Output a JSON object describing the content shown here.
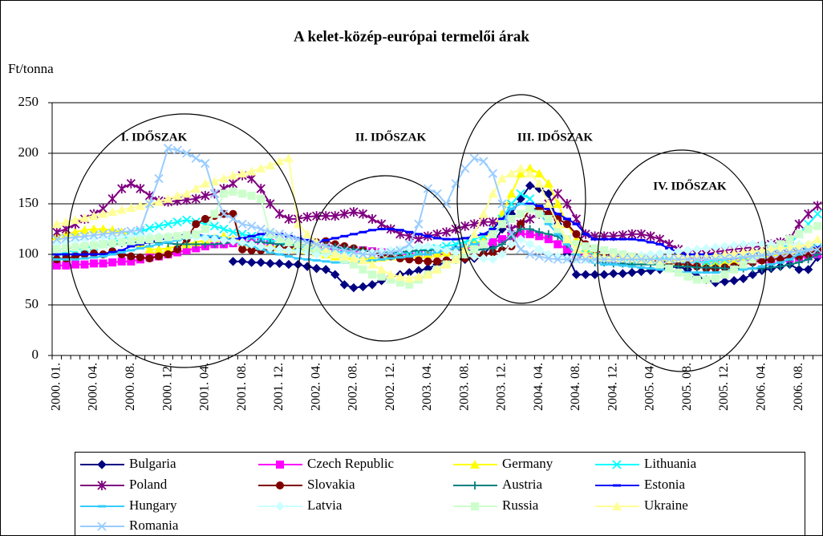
{
  "chart_data": {
    "type": "line",
    "title": "A kelet-közép-európai termelői árak",
    "y_label": "Ft/tonna",
    "annotations": [
      "I. IDŐSZAK",
      "II. IDŐSZAK",
      "III. IDŐSZAK",
      "IV. IDŐSZAK"
    ],
    "categories": [
      "2000. 01.",
      null,
      null,
      null,
      "2000. 04.",
      null,
      null,
      null,
      "2000. 08.",
      null,
      null,
      null,
      "2000. 12.",
      null,
      null,
      null,
      "2001. 04.",
      null,
      null,
      null,
      "2001. 08.",
      null,
      null,
      null,
      "2001. 12.",
      null,
      null,
      null,
      "2002. 04.",
      null,
      null,
      null,
      "2002. 08.",
      null,
      null,
      null,
      "2002. 12.",
      null,
      null,
      null,
      "2003. 04.",
      null,
      null,
      null,
      "2003. 08.",
      null,
      null,
      null,
      "2003. 12.",
      null,
      null,
      null,
      "2004. 04.",
      null,
      null,
      null,
      "2004. 08.",
      null,
      null,
      null,
      "2004. 12.",
      null,
      null,
      null,
      "2005. 04.",
      null,
      null,
      null,
      "2005. 08.",
      null,
      null,
      null,
      "2005. 12.",
      null,
      null,
      null,
      "2006. 04.",
      null,
      null,
      null,
      "2006. 08.",
      null,
      null
    ],
    "ylim": [
      0,
      250
    ],
    "yticks": [
      0,
      50,
      100,
      150,
      200,
      250
    ],
    "grid": true,
    "series": [
      {
        "name": "Bulgaria",
        "color": "#000080",
        "marker": "diamond",
        "values": [
          null,
          null,
          null,
          null,
          null,
          null,
          null,
          null,
          null,
          null,
          null,
          null,
          null,
          null,
          null,
          null,
          null,
          null,
          null,
          93,
          93,
          92,
          92,
          91,
          91,
          90,
          90,
          88,
          86,
          85,
          80,
          70,
          67,
          68,
          70,
          74,
          78,
          80,
          82,
          84,
          86,
          90,
          92,
          95,
          95,
          96,
          100,
          110,
          125,
          140,
          155,
          168,
          165,
          160,
          130,
          100,
          80,
          80,
          80,
          80,
          81,
          81,
          82,
          83,
          84,
          85,
          87,
          88,
          85,
          78,
          75,
          72,
          73,
          74,
          76,
          80,
          84,
          86,
          88,
          90,
          85,
          85,
          97
        ]
      },
      {
        "name": "Czech Republic",
        "color": "#ff00ff",
        "marker": "square",
        "values": [
          89,
          89,
          90,
          90,
          91,
          91,
          92,
          93,
          93,
          95,
          97,
          98,
          100,
          102,
          104,
          106,
          108,
          110,
          110,
          111,
          112,
          112,
          112,
          111,
          110,
          110,
          109,
          108,
          107,
          106,
          105,
          105,
          104,
          104,
          103,
          102,
          101,
          100,
          100,
          100,
          100,
          101,
          102,
          104,
          106,
          108,
          110,
          112,
          115,
          118,
          120,
          120,
          118,
          115,
          110,
          105,
          100,
          98,
          97,
          96,
          96,
          95,
          95,
          95,
          94,
          93,
          92,
          92,
          92,
          92,
          92,
          92,
          93,
          93,
          94,
          94,
          95,
          95,
          96,
          96,
          97,
          98,
          100
        ]
      },
      {
        "name": "Germany",
        "color": "#ffff00",
        "marker": "triangle",
        "values": [
          118,
          120,
          122,
          124,
          125,
          125,
          124,
          122,
          120,
          110,
          105,
          105,
          106,
          108,
          110,
          112,
          114,
          116,
          118,
          115,
          112,
          110,
          108,
          108,
          107,
          106,
          105,
          104,
          102,
          100,
          98,
          96,
          95,
          95,
          96,
          97,
          98,
          98,
          99,
          100,
          100,
          101,
          102,
          104,
          106,
          110,
          115,
          125,
          140,
          160,
          180,
          185,
          180,
          170,
          150,
          130,
          115,
          105,
          100,
          98,
          97,
          96,
          95,
          95,
          95,
          94,
          94,
          93,
          93,
          92,
          92,
          92,
          93,
          94,
          95,
          96,
          97,
          98,
          100,
          102,
          105,
          108,
          112
        ]
      },
      {
        "name": "Lithuania",
        "color": "#00ffff",
        "marker": "x",
        "values": [
          100,
          102,
          104,
          106,
          108,
          110,
          112,
          115,
          118,
          122,
          126,
          128,
          130,
          132,
          134,
          132,
          130,
          128,
          125,
          122,
          120,
          118,
          116,
          114,
          112,
          110,
          108,
          106,
          105,
          104,
          103,
          102,
          101,
          100,
          100,
          100,
          100,
          101,
          102,
          104,
          105,
          106,
          108,
          110,
          112,
          115,
          118,
          125,
          135,
          150,
          160,
          155,
          145,
          135,
          125,
          115,
          105,
          100,
          98,
          96,
          95,
          94,
          94,
          94,
          93,
          93,
          93,
          92,
          92,
          92,
          93,
          94,
          95,
          96,
          98,
          100,
          102,
          104,
          106,
          110,
          120,
          130,
          140
        ]
      },
      {
        "name": "Poland",
        "color": "#800080",
        "marker": "star",
        "values": [
          122,
          125,
          130,
          135,
          140,
          145,
          155,
          165,
          170,
          165,
          158,
          153,
          152,
          153,
          154,
          155,
          158,
          160,
          165,
          170,
          178,
          175,
          165,
          150,
          140,
          135,
          135,
          137,
          138,
          138,
          138,
          140,
          142,
          140,
          135,
          130,
          125,
          120,
          118,
          115,
          118,
          120,
          122,
          125,
          128,
          130,
          132,
          132,
          130,
          125,
          130,
          135,
          140,
          150,
          160,
          150,
          135,
          120,
          118,
          118,
          118,
          119,
          120,
          120,
          118,
          115,
          110,
          105,
          100,
          100,
          100,
          102,
          104,
          105,
          106,
          107,
          108,
          110,
          112,
          115,
          130,
          140,
          148
        ]
      },
      {
        "name": "Slovakia",
        "color": "#800000",
        "marker": "circle",
        "values": [
          95,
          96,
          98,
          100,
          101,
          100,
          103,
          100,
          98,
          97,
          96,
          98,
          100,
          105,
          115,
          130,
          135,
          138,
          140,
          140,
          105,
          104,
          104,
          105,
          106,
          107,
          108,
          110,
          112,
          113,
          110,
          108,
          106,
          104,
          102,
          100,
          98,
          96,
          95,
          94,
          93,
          93,
          94,
          95,
          96,
          98,
          100,
          102,
          104,
          108,
          130,
          145,
          145,
          140,
          135,
          130,
          120,
          110,
          105,
          100,
          98,
          97,
          96,
          95,
          94,
          93,
          92,
          91,
          90,
          88,
          86,
          86,
          87,
          88,
          90,
          92,
          94,
          95,
          96,
          97,
          98,
          100,
          105
        ]
      },
      {
        "name": "Austria",
        "color": "#008080",
        "marker": "plus",
        "values": [
          105,
          106,
          107,
          108,
          109,
          110,
          110,
          111,
          112,
          112,
          112,
          112,
          111,
          110,
          110,
          110,
          110,
          110,
          111,
          112,
          112,
          112,
          112,
          111,
          110,
          110,
          110,
          109,
          108,
          108,
          107,
          106,
          105,
          104,
          103,
          102,
          102,
          102,
          103,
          104,
          104,
          105,
          105,
          105,
          104,
          104,
          105,
          106,
          110,
          118,
          125,
          125,
          122,
          120,
          118,
          110,
          100,
          95,
          92,
          92,
          91,
          91,
          90,
          90,
          90,
          90,
          89,
          88,
          88,
          87,
          87,
          87,
          86,
          86,
          86,
          86,
          86,
          87,
          88,
          90,
          92,
          95,
          100
        ]
      },
      {
        "name": "Estonia",
        "color": "#0000ff",
        "marker": "dash",
        "values": [
          100,
          100,
          100,
          100,
          100,
          100,
          102,
          104,
          108,
          110,
          112,
          114,
          116,
          118,
          120,
          120,
          118,
          116,
          115,
          115,
          116,
          118,
          120,
          122,
          120,
          118,
          116,
          114,
          112,
          114,
          116,
          118,
          120,
          122,
          124,
          125,
          125,
          124,
          122,
          120,
          118,
          116,
          115,
          115,
          116,
          118,
          120,
          125,
          135,
          145,
          150,
          150,
          148,
          145,
          140,
          135,
          130,
          120,
          115,
          115,
          115,
          115,
          115,
          114,
          112,
          110,
          106,
          102,
          100,
          100,
          100,
          100,
          100,
          100,
          100,
          100,
          101,
          102,
          103,
          104,
          105,
          106,
          108
        ]
      },
      {
        "name": "Hungary",
        "color": "#33ccff",
        "marker": "dash",
        "values": [
          95,
          95,
          95,
          96,
          97,
          98,
          100,
          102,
          104,
          106,
          108,
          110,
          112,
          114,
          116,
          118,
          118,
          118,
          116,
          114,
          110,
          108,
          105,
          102,
          100,
          98,
          96,
          95,
          94,
          93,
          92,
          92,
          92,
          93,
          94,
          95,
          96,
          97,
          98,
          100,
          100,
          102,
          104,
          106,
          108,
          110,
          112,
          118,
          130,
          145,
          150,
          148,
          140,
          130,
          120,
          110,
          100,
          95,
          92,
          90,
          90,
          89,
          88,
          87,
          86,
          85,
          84,
          83,
          82,
          82,
          82,
          82,
          83,
          84,
          85,
          86,
          88,
          90,
          92,
          95,
          100,
          105,
          110
        ]
      },
      {
        "name": "Latvia",
        "color": "#ccffff",
        "marker": "diamond",
        "values": [
          110,
          112,
          114,
          115,
          116,
          117,
          118,
          118,
          118,
          118,
          118,
          118,
          118,
          118,
          118,
          117,
          116,
          115,
          114,
          113,
          112,
          110,
          108,
          106,
          105,
          104,
          103,
          102,
          100,
          100,
          100,
          100,
          100,
          101,
          102,
          103,
          104,
          105,
          106,
          108,
          108,
          106,
          104,
          102,
          100,
          98,
          96,
          95,
          100,
          110,
          115,
          110,
          105,
          100,
          98,
          96,
          95,
          95,
          95,
          96,
          96,
          97,
          98,
          99,
          100,
          101,
          102,
          103,
          104,
          105,
          106,
          107,
          108,
          109,
          110,
          110,
          110,
          110,
          110,
          110,
          110,
          110,
          112
        ]
      },
      {
        "name": "Russia",
        "color": "#ccffcc",
        "marker": "square",
        "values": [
          105,
          106,
          107,
          108,
          109,
          110,
          111,
          112,
          113,
          114,
          115,
          116,
          117,
          118,
          119,
          120,
          125,
          140,
          160,
          162,
          160,
          158,
          155,
          120,
          115,
          112,
          110,
          108,
          106,
          104,
          100,
          95,
          90,
          85,
          80,
          78,
          75,
          72,
          70,
          75,
          80,
          85,
          90,
          95,
          100,
          105,
          110,
          120,
          130,
          135,
          140,
          145,
          140,
          135,
          125,
          115,
          110,
          108,
          106,
          104,
          102,
          100,
          98,
          96,
          94,
          90,
          86,
          82,
          78,
          75,
          75,
          76,
          80,
          85,
          90,
          95,
          100,
          105,
          110,
          115,
          120,
          125,
          128
        ]
      },
      {
        "name": "Ukraine",
        "color": "#ffff99",
        "marker": "triangle",
        "values": [
          130,
          132,
          134,
          136,
          138,
          140,
          142,
          144,
          146,
          148,
          150,
          152,
          155,
          158,
          160,
          165,
          170,
          172,
          175,
          178,
          180,
          182,
          185,
          188,
          192,
          195,
          130,
          120,
          112,
          106,
          100,
          98,
          96,
          94,
          90,
          85,
          80,
          78,
          76,
          78,
          80,
          85,
          90,
          95,
          105,
          120,
          140,
          160,
          175,
          180,
          185,
          180,
          170,
          150,
          130,
          115,
          105,
          100,
          98,
          97,
          97,
          96,
          96,
          95,
          95,
          95,
          95,
          96,
          97,
          98,
          98,
          99,
          100,
          101,
          102,
          103,
          104,
          105,
          106,
          107,
          108,
          110,
          115
        ]
      },
      {
        "name": "Romania",
        "color": "#99ccff",
        "marker": "x",
        "values": [
          115,
          116,
          117,
          118,
          119,
          120,
          121,
          122,
          123,
          124,
          150,
          175,
          205,
          203,
          200,
          195,
          190,
          160,
          140,
          135,
          130,
          128,
          125,
          122,
          120,
          118,
          115,
          112,
          110,
          108,
          106,
          104,
          102,
          100,
          100,
          100,
          102,
          104,
          110,
          130,
          165,
          160,
          150,
          170,
          185,
          195,
          192,
          180,
          150,
          120,
          105,
          100,
          98,
          96,
          95,
          95,
          95,
          95,
          95,
          95,
          95,
          95,
          95,
          95,
          95,
          95,
          95,
          95,
          95,
          95,
          95,
          95,
          96,
          96,
          97,
          98,
          99,
          100,
          101,
          102,
          103,
          104,
          105
        ]
      }
    ]
  }
}
